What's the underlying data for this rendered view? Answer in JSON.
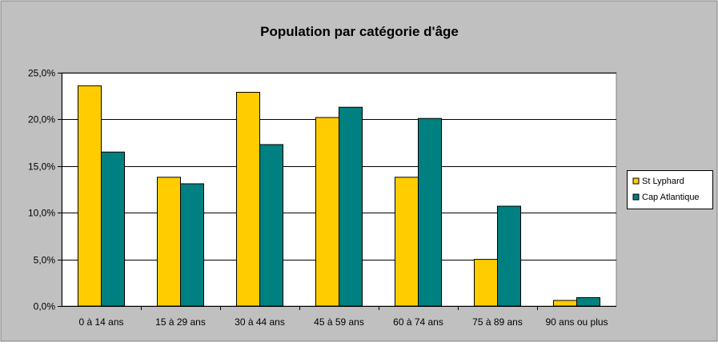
{
  "chart_data": {
    "type": "bar",
    "title": "Population par catégorie d'âge",
    "xlabel": "",
    "ylabel": "",
    "categories": [
      "0 à 14 ans",
      "15 à 29 ans",
      "30 à 44 ans",
      "45 à 59 ans",
      "60 à 74 ans",
      "75 à 89 ans",
      "90 ans ou plus"
    ],
    "series": [
      {
        "name": "St Lyphard",
        "values": [
          23.6,
          13.8,
          22.9,
          20.2,
          13.8,
          5.0,
          0.6
        ],
        "color": "#FFCC00"
      },
      {
        "name": "Cap Atlantique",
        "values": [
          16.5,
          13.1,
          17.3,
          21.3,
          20.1,
          10.7,
          0.9
        ],
        "color": "#008080"
      }
    ],
    "ylim": [
      0,
      25
    ],
    "yticks": [
      0,
      5,
      10,
      15,
      20,
      25
    ],
    "ytick_labels": [
      "0,0%",
      "5,0%",
      "10,0%",
      "15,0%",
      "20,0%",
      "25,0%"
    ],
    "grid": true,
    "legend_position": "right",
    "colors": {
      "chart_area": "#C0C0C0",
      "plot_area": "#FFFFFF",
      "gridline": "#000000"
    }
  }
}
